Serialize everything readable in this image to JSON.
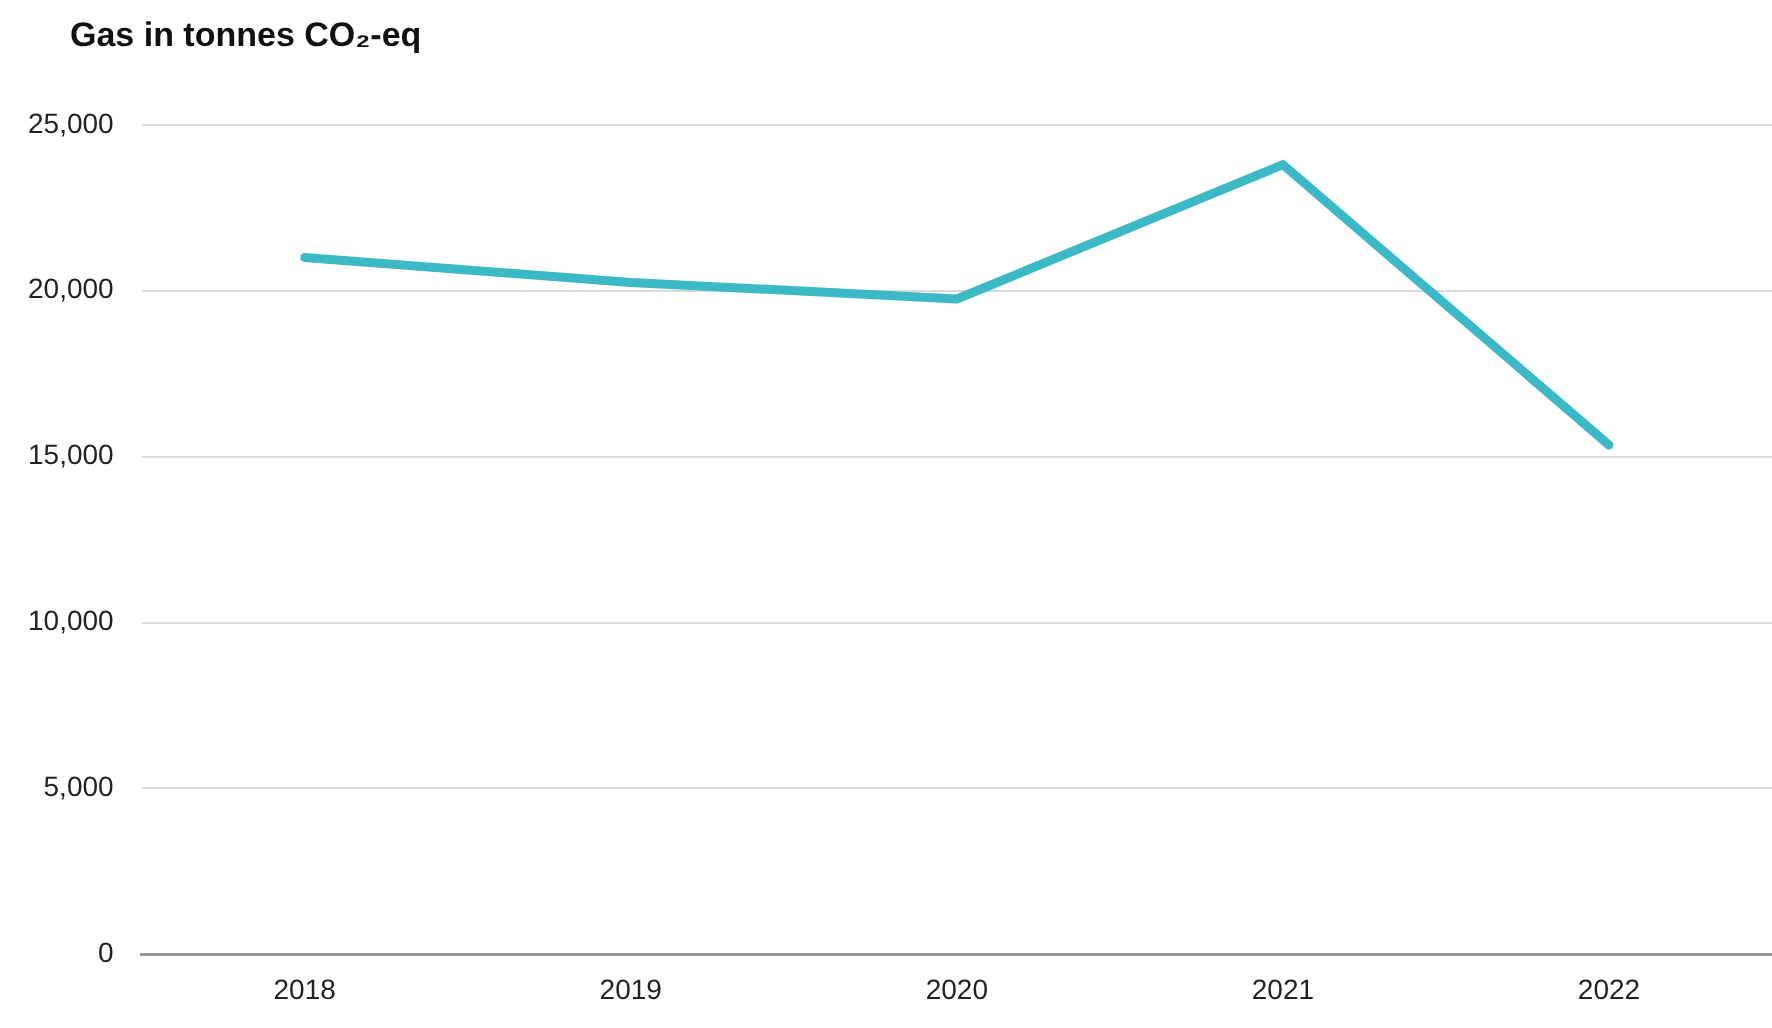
{
  "chart_data": {
    "type": "line",
    "title": "Gas in tonnes CO₂-eq",
    "categories": [
      "2018",
      "2019",
      "2020",
      "2021",
      "2022"
    ],
    "series": [
      {
        "color": "#3bb9c7",
        "values": [
          21000,
          20250,
          19750,
          23800,
          15350
        ]
      }
    ],
    "ylim": [
      0,
      25000
    ],
    "yticks": [
      {
        "value": 0,
        "label": "0"
      },
      {
        "value": 5000,
        "label": "5,000"
      },
      {
        "value": 10000,
        "label": "10,000"
      },
      {
        "value": 15000,
        "label": "15,000"
      },
      {
        "value": 20000,
        "label": "20,000"
      },
      {
        "value": 25000,
        "label": "25,000"
      }
    ],
    "grid": "y",
    "legend": false,
    "marker": "none",
    "line_style": "solid"
  }
}
